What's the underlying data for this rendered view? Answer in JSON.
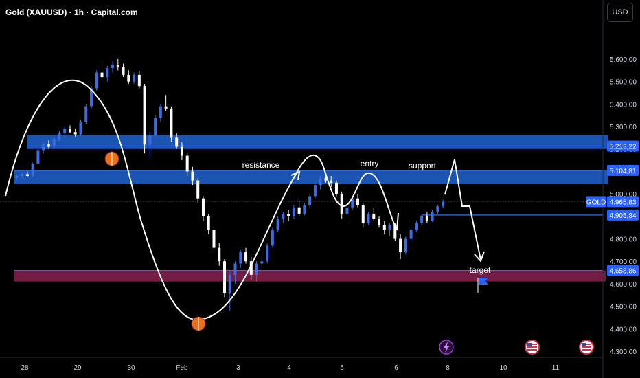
{
  "header": {
    "title": "Gold (XAUUSD) · 1h · Capital.com",
    "currency_button": "USD"
  },
  "colors": {
    "background": "#000000",
    "candle_up": "#3d6be0",
    "candle_down": "#ffffff",
    "zone_blue": "#1f5ec4",
    "zone_line": "#3f7bff",
    "zone_red": "#7a1f47",
    "drawing": "#ffffff",
    "marker": "#e8701a",
    "price_tag": "#2962ff"
  },
  "chart_data": {
    "type": "candlestick",
    "x_ticks": [
      "28",
      "29",
      "30",
      "Feb",
      "3",
      "4",
      "5",
      "6",
      "8",
      "10",
      "11"
    ],
    "y_ticks": [
      5600,
      5500,
      5400,
      5300,
      5200,
      5100,
      5000,
      4900,
      4800,
      4700,
      4600,
      4500,
      4400,
      4300
    ],
    "y_tick_labels": [
      "5.600,00",
      "5.500,00",
      "5.400,00",
      "5.300,00",
      "5.200,00",
      "5.100,00",
      "5.000,00",
      "4.900,00",
      "4.800,00",
      "4.700,00",
      "4.600,00",
      "4.500,00",
      "4.400,00",
      "4.300,00"
    ],
    "ylim": [
      4265,
      5760
    ],
    "x_range": [
      -0.2,
      11.6
    ],
    "price_tags": [
      {
        "label": "5.213,22",
        "value": 5213.22
      },
      {
        "label": "5.104,81",
        "value": 5104.81
      },
      {
        "label": "4.965,83",
        "value": 4965.83,
        "symbol": "GOLD"
      },
      {
        "label": "4.905,84",
        "value": 4905.84
      },
      {
        "label": "4.658,86",
        "value": 4658.86
      }
    ],
    "zones": [
      {
        "kind": "blue",
        "y_top": 5262,
        "y_bottom": 5200,
        "x_start": 0.05,
        "x_end": 10.95
      },
      {
        "kind": "blue",
        "y_top": 5104.81,
        "y_bottom": 5045,
        "x_start": -0.2,
        "x_end": 10.95
      },
      {
        "kind": "red",
        "y_top": 4658.86,
        "y_bottom": 4610,
        "x_start": -0.2,
        "x_end": 10.9
      }
    ],
    "annotations": [
      "resistance",
      "entry",
      "support",
      "target"
    ],
    "candles": [
      [
        -0.15,
        5072,
        5085,
        5062,
        5080
      ],
      [
        -0.05,
        5080,
        5095,
        5070,
        5088
      ],
      [
        0.05,
        5088,
        5100,
        5075,
        5080
      ],
      [
        0.15,
        5080,
        5140,
        5075,
        5135
      ],
      [
        0.25,
        5135,
        5200,
        5130,
        5195
      ],
      [
        0.35,
        5195,
        5230,
        5180,
        5220
      ],
      [
        0.45,
        5220,
        5240,
        5200,
        5210
      ],
      [
        0.55,
        5210,
        5250,
        5205,
        5245
      ],
      [
        0.65,
        5245,
        5280,
        5235,
        5270
      ],
      [
        0.75,
        5270,
        5300,
        5255,
        5290
      ],
      [
        0.85,
        5290,
        5305,
        5270,
        5275
      ],
      [
        0.95,
        5275,
        5290,
        5255,
        5265
      ],
      [
        1.05,
        5265,
        5330,
        5260,
        5320
      ],
      [
        1.15,
        5320,
        5400,
        5310,
        5390
      ],
      [
        1.25,
        5390,
        5480,
        5380,
        5470
      ],
      [
        1.35,
        5470,
        5550,
        5460,
        5540
      ],
      [
        1.45,
        5540,
        5580,
        5510,
        5520
      ],
      [
        1.55,
        5520,
        5570,
        5500,
        5560
      ],
      [
        1.65,
        5560,
        5590,
        5540,
        5575
      ],
      [
        1.75,
        5575,
        5600,
        5550,
        5565
      ],
      [
        1.85,
        5565,
        5580,
        5520,
        5530
      ],
      [
        1.95,
        5530,
        5550,
        5490,
        5500
      ],
      [
        2.05,
        5500,
        5540,
        5490,
        5530
      ],
      [
        2.15,
        5530,
        5545,
        5470,
        5480
      ],
      [
        2.25,
        5480,
        5490,
        5180,
        5220
      ],
      [
        2.35,
        5220,
        5280,
        5160,
        5260
      ],
      [
        2.45,
        5260,
        5350,
        5250,
        5340
      ],
      [
        2.55,
        5340,
        5400,
        5320,
        5390
      ],
      [
        2.65,
        5390,
        5440,
        5370,
        5380
      ],
      [
        2.75,
        5380,
        5390,
        5230,
        5250
      ],
      [
        2.85,
        5250,
        5270,
        5200,
        5210
      ],
      [
        2.95,
        5210,
        5230,
        5150,
        5170
      ],
      [
        3.05,
        5170,
        5180,
        5080,
        5100
      ],
      [
        3.15,
        5100,
        5120,
        5040,
        5060
      ],
      [
        3.25,
        5060,
        5070,
        4960,
        4980
      ],
      [
        3.35,
        4980,
        4990,
        4880,
        4900
      ],
      [
        3.45,
        4900,
        4910,
        4820,
        4840
      ],
      [
        3.55,
        4840,
        4850,
        4740,
        4760
      ],
      [
        3.65,
        4760,
        4780,
        4680,
        4700
      ],
      [
        3.75,
        4700,
        4710,
        4540,
        4560
      ],
      [
        3.85,
        4560,
        4660,
        4480,
        4640
      ],
      [
        3.95,
        4640,
        4700,
        4600,
        4690
      ],
      [
        4.05,
        4690,
        4750,
        4670,
        4740
      ],
      [
        4.15,
        4740,
        4760,
        4690,
        4700
      ],
      [
        4.25,
        4700,
        4720,
        4620,
        4640
      ],
      [
        4.35,
        4640,
        4700,
        4610,
        4690
      ],
      [
        4.45,
        4690,
        4720,
        4650,
        4700
      ],
      [
        4.55,
        4700,
        4780,
        4690,
        4770
      ],
      [
        4.65,
        4770,
        4850,
        4760,
        4840
      ],
      [
        4.75,
        4840,
        4900,
        4830,
        4890
      ],
      [
        4.85,
        4890,
        4920,
        4870,
        4910
      ],
      [
        4.95,
        4910,
        4930,
        4880,
        4900
      ],
      [
        5.05,
        4900,
        4950,
        4890,
        4940
      ],
      [
        5.15,
        4940,
        4970,
        4900,
        4910
      ],
      [
        5.25,
        4910,
        4960,
        4905,
        4950
      ],
      [
        5.35,
        4950,
        5000,
        4940,
        4990
      ],
      [
        5.45,
        4990,
        5050,
        4980,
        5040
      ],
      [
        5.55,
        5040,
        5080,
        5020,
        5070
      ],
      [
        5.65,
        5070,
        5090,
        5050,
        5060
      ],
      [
        5.75,
        5060,
        5080,
        5030,
        5050
      ],
      [
        5.85,
        5050,
        5060,
        4990,
        5000
      ],
      [
        5.95,
        5000,
        5010,
        4890,
        4910
      ],
      [
        6.05,
        4910,
        4950,
        4880,
        4940
      ],
      [
        6.15,
        4940,
        4990,
        4930,
        4980
      ],
      [
        6.25,
        4980,
        5000,
        4940,
        4950
      ],
      [
        6.35,
        4950,
        4960,
        4850,
        4870
      ],
      [
        6.45,
        4870,
        4920,
        4860,
        4910
      ],
      [
        6.55,
        4910,
        4940,
        4880,
        4890
      ],
      [
        6.65,
        4890,
        4900,
        4850,
        4860
      ],
      [
        6.75,
        4860,
        4880,
        4820,
        4840
      ],
      [
        6.85,
        4840,
        4870,
        4810,
        4860
      ],
      [
        6.95,
        4860,
        4870,
        4790,
        4800
      ],
      [
        7.05,
        4800,
        4820,
        4710,
        4740
      ],
      [
        7.15,
        4740,
        4810,
        4730,
        4800
      ],
      [
        7.25,
        4800,
        4850,
        4790,
        4840
      ],
      [
        7.35,
        4840,
        4880,
        4830,
        4870
      ],
      [
        7.45,
        4870,
        4905,
        4860,
        4900
      ],
      [
        7.55,
        4900,
        4920,
        4870,
        4880
      ],
      [
        7.65,
        4880,
        4930,
        4875,
        4920
      ],
      [
        7.75,
        4920,
        4950,
        4910,
        4945
      ],
      [
        7.85,
        4945,
        4975,
        4935,
        4965
      ]
    ]
  }
}
